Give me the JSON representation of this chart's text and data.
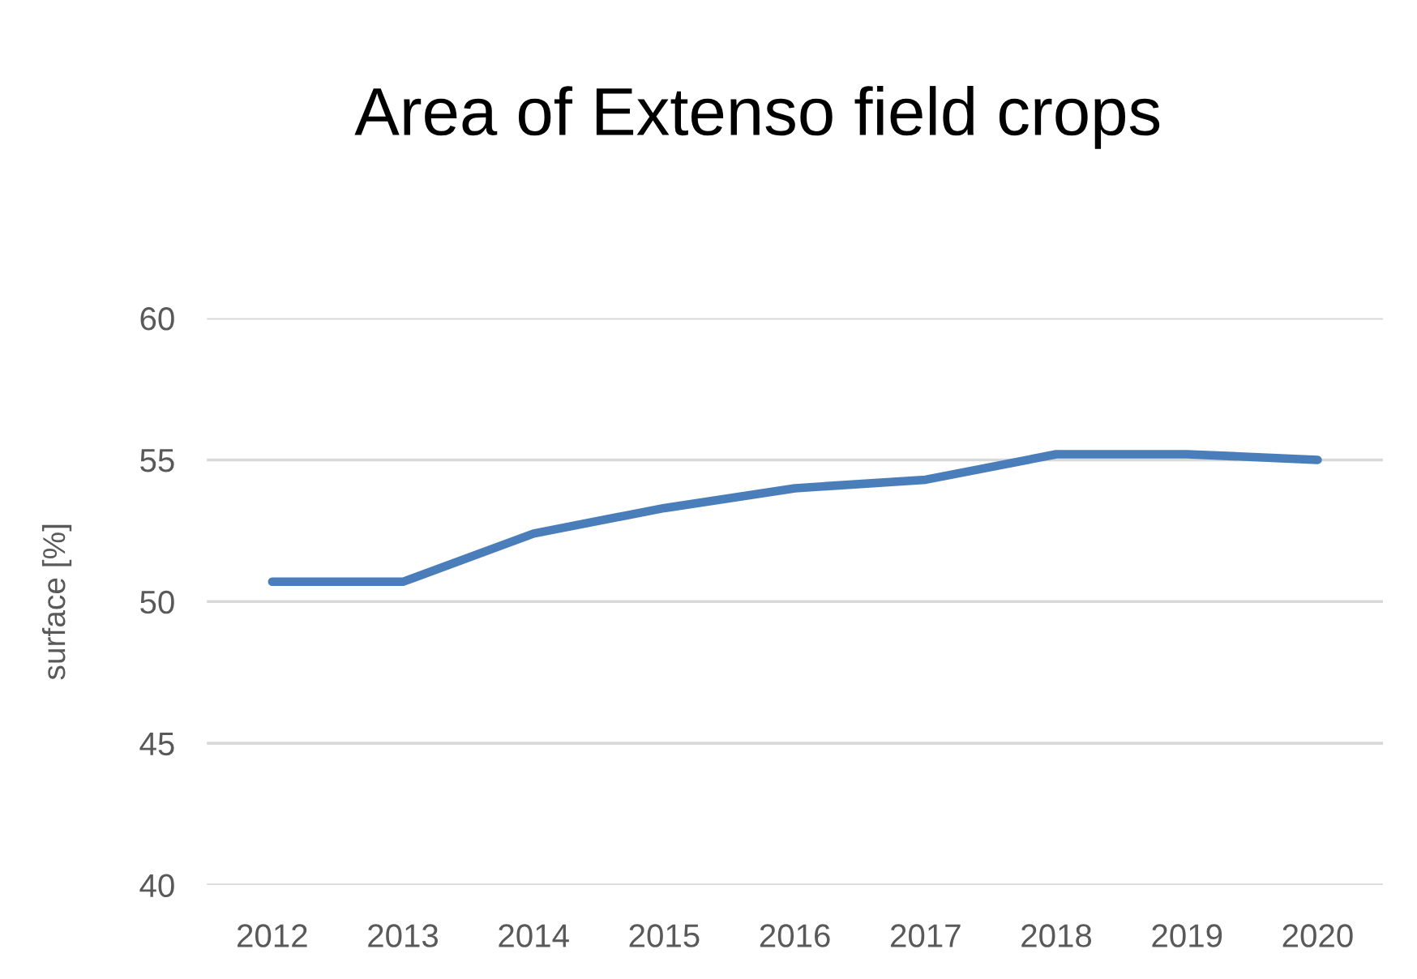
{
  "chart_data": {
    "type": "line",
    "title": "Area of Extenso field crops",
    "ylabel": "surface [%]",
    "categories": [
      "2012",
      "2013",
      "2014",
      "2015",
      "2016",
      "2017",
      "2018",
      "2019",
      "2020"
    ],
    "series": [
      {
        "color": "#4a7ebb",
        "values": [
          50.7,
          50.7,
          52.4,
          53.3,
          54.0,
          54.3,
          55.2,
          55.2,
          55.0
        ]
      }
    ],
    "ylim": [
      40,
      60
    ],
    "yticks": [
      40,
      45,
      50,
      55,
      60
    ],
    "grid": "y",
    "line_style": "solid"
  }
}
